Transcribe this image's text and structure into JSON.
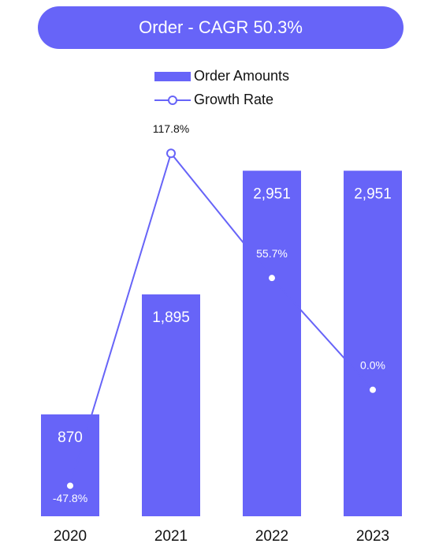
{
  "chart_data": {
    "type": "bar",
    "title": "Order - CAGR 50.3%",
    "categories": [
      "2020",
      "2021",
      "2022",
      "2023"
    ],
    "series": [
      {
        "name": "Order Amounts",
        "type": "bar",
        "color": "#6764f8",
        "values": [
          870,
          1895,
          2951,
          2951
        ],
        "value_labels": [
          "870",
          "1,895",
          "2,951",
          "2,951"
        ]
      },
      {
        "name": "Growth Rate",
        "type": "line",
        "axis": "y2",
        "color": "#6764f8",
        "values": [
          -47.8,
          117.8,
          55.7,
          0.0
        ],
        "value_labels": [
          "-47.8%",
          "117.8%",
          "55.7%",
          "0.0%"
        ]
      }
    ],
    "ylim": [
      0,
      3000
    ],
    "y2lim": [
      -63,
      112
    ]
  }
}
